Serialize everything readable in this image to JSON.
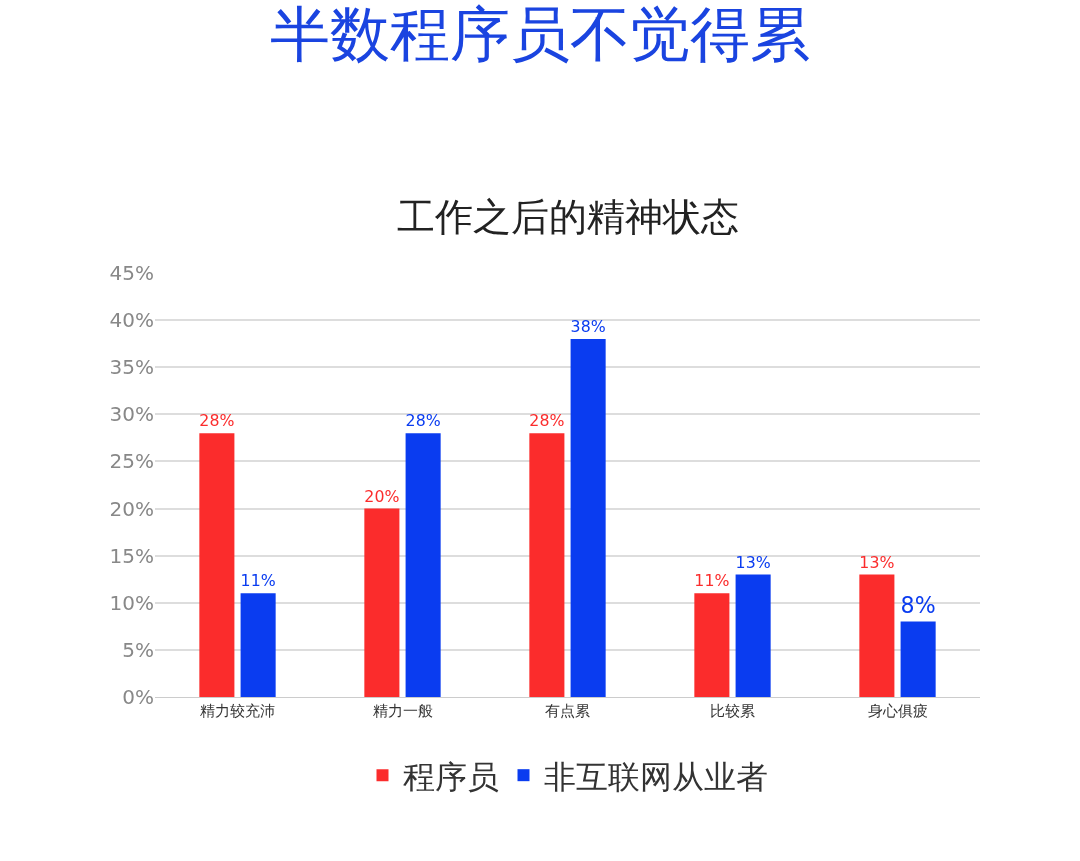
{
  "chart_data": {
    "type": "bar",
    "title": "半数程序员不觉得累",
    "subtitle": "工作之后的精神状态",
    "categories": [
      "精力较充沛",
      "精力一般",
      "有点累",
      "比较累",
      "身心俱疲"
    ],
    "series": [
      {
        "name": "程序员",
        "color": "#fb2c2c",
        "values": [
          28,
          20,
          28,
          11,
          13
        ],
        "value_labels": [
          "28%",
          "20%",
          "28%",
          "11%",
          "13%"
        ]
      },
      {
        "name": "非互联网从业者",
        "color": "#0a3cf0",
        "values": [
          11,
          28,
          38,
          13,
          8
        ],
        "value_labels": [
          "11%",
          "28%",
          "38%",
          "13%",
          "8%"
        ]
      }
    ],
    "ylim": [
      0,
      45
    ],
    "yticks": [
      {
        "value": 0,
        "label": "0%"
      },
      {
        "value": 5,
        "label": "5%"
      },
      {
        "value": 10,
        "label": "10%"
      },
      {
        "value": 15,
        "label": "15%"
      },
      {
        "value": 20,
        "label": "20%"
      },
      {
        "value": 25,
        "label": "25%"
      },
      {
        "value": 30,
        "label": "30%"
      },
      {
        "value": 35,
        "label": "35%"
      },
      {
        "value": 40,
        "label": "40%"
      },
      {
        "value": 45,
        "label": "45%"
      }
    ],
    "grid": "y",
    "legend": "bottom"
  }
}
